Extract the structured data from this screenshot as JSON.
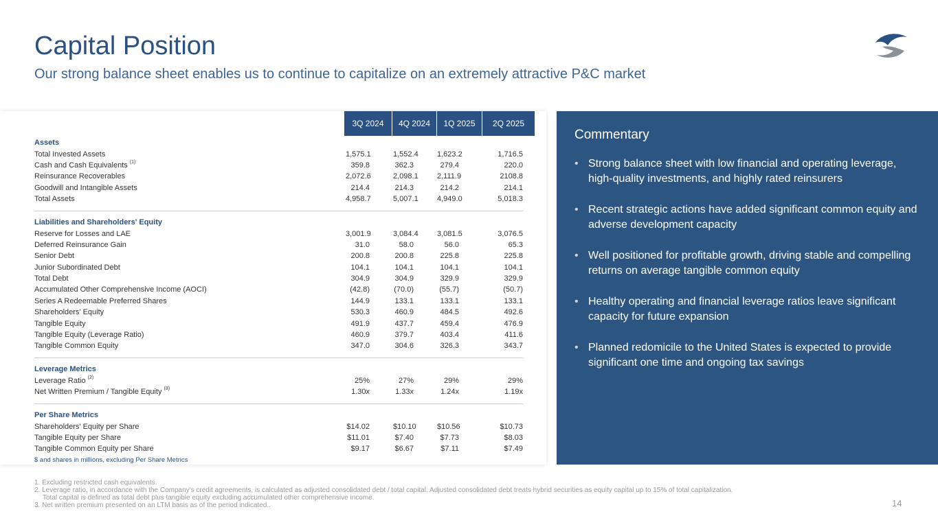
{
  "title": "Capital Position",
  "subtitle": "Our strong balance sheet enables us to continue to capitalize on an extremely attractive P&C market",
  "table": {
    "columns": [
      "3Q 2024",
      "4Q 2024",
      "1Q 2025",
      "2Q 2025"
    ],
    "sections": [
      {
        "heading": "Assets",
        "rows": [
          {
            "label": "Total Invested Assets",
            "values": [
              "1,575.1",
              "1,552.4",
              "1,623.2",
              "1,716.5"
            ]
          },
          {
            "label": "Cash and Cash Equivalents",
            "sup": "(1)",
            "values": [
              "359.8",
              "362.3",
              "279.4",
              "220.0"
            ]
          },
          {
            "label": "Reinsurance Recoverables",
            "values": [
              "2,072.6",
              "2,098.1",
              "2,111.9",
              "2108.8"
            ]
          },
          {
            "label": "Goodwill and Intangible Assets",
            "values": [
              "214.4",
              "214.3",
              "214.2",
              "214.1"
            ]
          },
          {
            "label": "Total Assets",
            "values": [
              "4,958.7",
              "5,007.1",
              "4,949.0",
              "5,018.3"
            ]
          }
        ]
      },
      {
        "heading": "Liabilities and Shareholders' Equity",
        "rows": [
          {
            "label": "Reserve for Losses and LAE",
            "values": [
              "3,001.9",
              "3,084.4",
              "3,081.5",
              "3,076.5"
            ]
          },
          {
            "label": "Deferred Reinsurance Gain",
            "values": [
              "31.0",
              "58.0",
              "56.0",
              "65.3"
            ]
          },
          {
            "label": "Senior Debt",
            "values": [
              "200.8",
              "200.8",
              "225.8",
              "225.8"
            ]
          },
          {
            "label": "Junior Subordinated Debt",
            "values": [
              "104.1",
              "104.1",
              "104.1",
              "104.1"
            ]
          },
          {
            "label": "Total Debt",
            "values": [
              "304.9",
              "304.9",
              "329.9",
              "329.9"
            ]
          },
          {
            "label": "Accumulated Other Comprehensive Income (AOCI)",
            "values": [
              "(42.8)",
              "(70.0)",
              "(55.7)",
              "(50.7)"
            ]
          },
          {
            "label": "Series A Redeemable Preferred Shares",
            "values": [
              "144.9",
              "133.1",
              "133.1",
              "133.1"
            ]
          },
          {
            "label": "Shareholders' Equity",
            "values": [
              "530.3",
              "460.9",
              "484.5",
              "492.6"
            ]
          },
          {
            "label": "Tangible Equity",
            "values": [
              "491.9",
              "437.7",
              "459.4",
              "476.9"
            ]
          },
          {
            "label": "Tangible Equity (Leverage Ratio)",
            "values": [
              "460.9",
              "379.7",
              "403.4",
              "411.6"
            ]
          },
          {
            "label": "Tangible Common Equity",
            "values": [
              "347.0",
              "304.6",
              "326.3",
              "343.7"
            ]
          }
        ]
      },
      {
        "heading": "Leverage Metrics",
        "rows": [
          {
            "label": "Leverage Ratio",
            "sup": "(2)",
            "values": [
              "25%",
              "27%",
              "29%",
              "29%"
            ]
          },
          {
            "label": "Net Written Premium / Tangible Equity",
            "sup": "(3)",
            "values": [
              "1.30x",
              "1.33x",
              "1.24x",
              "1.19x"
            ]
          }
        ]
      },
      {
        "heading": "Per Share Metrics",
        "rows": [
          {
            "label": "Shareholders' Equity per Share",
            "values": [
              "$14.02",
              "$10.10",
              "$10.56",
              "$10.73"
            ]
          },
          {
            "label": "Tangible Equity per Share",
            "values": [
              "$11.01",
              "$7.40",
              "$7.73",
              "$8.03"
            ]
          },
          {
            "label": "Tangible Common Equity per Share",
            "values": [
              "$9.17",
              "$6.67",
              "$7.11",
              "$7.49"
            ]
          }
        ]
      }
    ],
    "note": "$ and shares in millions, excluding Per Share Metrics"
  },
  "commentary": {
    "title": "Commentary",
    "bullets": [
      "Strong balance sheet with low financial and operating leverage, high-quality investments, and highly rated reinsurers",
      "Recent strategic actions have added significant common equity and adverse development capacity",
      "Well positioned for profitable growth, driving stable and compelling returns on average tangible common equity",
      "Healthy operating and financial leverage ratios leave significant capacity for future expansion",
      "Planned redomicile to the United States is expected to provide significant one time and ongoing tax savings"
    ]
  },
  "footnotes": [
    "1.  Excluding restricted cash equivalents.",
    "2.  Leverage ratio, in accordance with the Company's credit agreements, is calculated as adjusted consolidated debt / total capital. Adjusted consolidated debt treats hybrid securities as equity capital up to 15% of total capitalization.",
    "Total capital is defined as total debt plus tangible equity excluding accumulated other comprehensive income.",
    "3.  Net written premium presented on an LTM basis as of the period indicated.."
  ],
  "page_number": "14",
  "colors": {
    "brand": "#2b5183",
    "panel": "#2c5582"
  }
}
